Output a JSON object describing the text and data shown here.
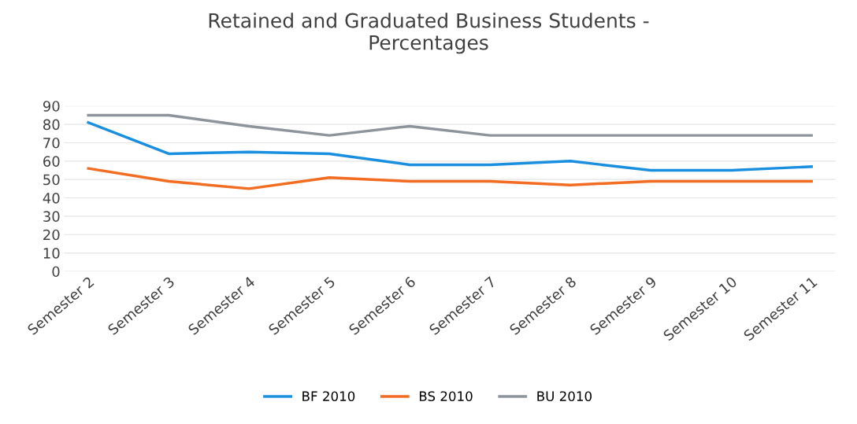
{
  "chart_data": {
    "type": "line",
    "title": "Retained and Graduated Business Students -\nPercentages",
    "categories": [
      "Semester 2",
      "Semester 3",
      "Semester 4",
      "Semester 5",
      "Semester 6",
      "Semester 7",
      "Semester 8",
      "Semester 9",
      "Semester 10",
      "Semester 11"
    ],
    "series": [
      {
        "name": "BF 2010",
        "color": "#1a8fe0",
        "values": [
          81,
          64,
          65,
          64,
          58,
          58,
          60,
          55,
          55,
          57
        ]
      },
      {
        "name": "BS 2010",
        "color": "#f26d21",
        "values": [
          56,
          49,
          45,
          51,
          49,
          49,
          47,
          49,
          49,
          49
        ]
      },
      {
        "name": "BU 2010",
        "color": "#8e949c",
        "values": [
          85,
          85,
          79,
          74,
          79,
          74,
          74,
          74,
          74,
          74
        ]
      }
    ],
    "ylim": [
      0,
      90
    ],
    "yticks": [
      0,
      10,
      20,
      30,
      40,
      50,
      60,
      70,
      80,
      90
    ],
    "grid": "y",
    "legend": "bottom",
    "marker": "none",
    "line_style": "solid"
  }
}
